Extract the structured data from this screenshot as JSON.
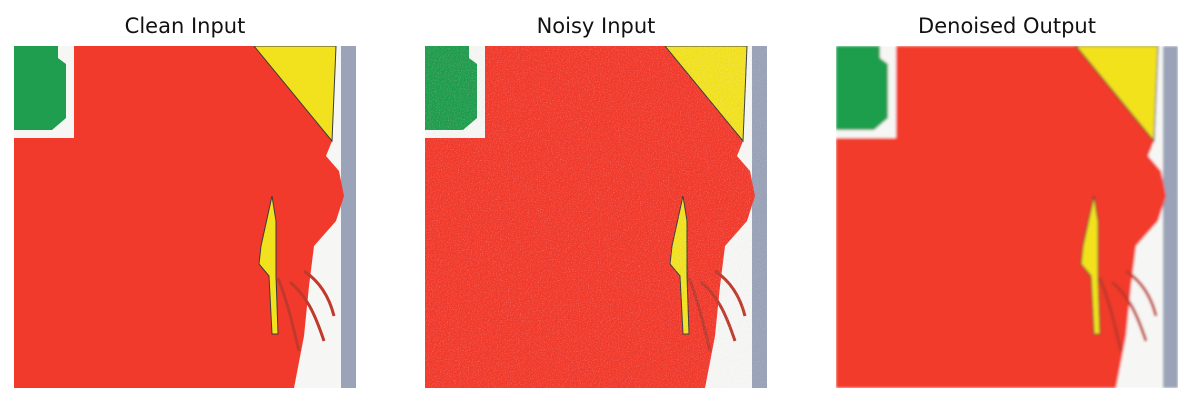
{
  "panels": [
    {
      "title": "Clean Input",
      "variant": "clean"
    },
    {
      "title": "Noisy Input",
      "variant": "noisy"
    },
    {
      "title": "Denoised Output",
      "variant": "denoised"
    }
  ],
  "colors": {
    "red": "#f23a2c",
    "green": "#1e9e4e",
    "yellow": "#f2e21e",
    "white": "#f6f6f4",
    "gray_strip": "#9aa3b8"
  }
}
